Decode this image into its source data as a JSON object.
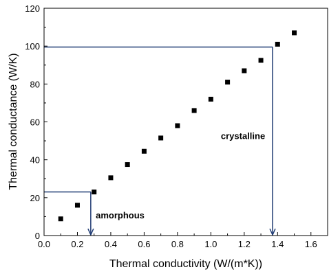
{
  "chart_data": {
    "type": "scatter",
    "title": "",
    "xlabel": "Thermal conductivity (W/(m*K))",
    "ylabel": "Thermal conductance (W/K)",
    "xlim": [
      0.0,
      1.7
    ],
    "ylim": [
      0,
      120
    ],
    "x_ticks": [
      0.0,
      0.2,
      0.4,
      0.6,
      0.8,
      1.0,
      1.2,
      1.4,
      1.6
    ],
    "x_tick_labels": [
      "0.0",
      "0.2",
      "0.4",
      "0.6",
      "0.8",
      "1.0",
      "1.2",
      "1.4",
      "1.6"
    ],
    "y_ticks": [
      0,
      20,
      40,
      60,
      80,
      100,
      120
    ],
    "y_tick_labels": [
      "0",
      "20",
      "40",
      "60",
      "80",
      "100",
      "120"
    ],
    "grid": false,
    "legend": "none",
    "marker": "square",
    "marker_color": "#000000",
    "series": [
      {
        "x": [
          0.1,
          0.2,
          0.3,
          0.4,
          0.5,
          0.6,
          0.7,
          0.8,
          0.9,
          1.0,
          1.1,
          1.2,
          1.3,
          1.4,
          1.5
        ],
        "y": [
          8.8,
          16.0,
          23.0,
          30.5,
          37.5,
          44.5,
          51.5,
          58.0,
          66.0,
          72.0,
          81.0,
          87.0,
          92.5,
          101.0,
          107.0
        ]
      }
    ],
    "annotations": [
      {
        "label": "amorphous",
        "y_value": 23,
        "x_value": 0.28,
        "line_color": "#1f3b73",
        "label_anchor": [
          0.31,
          9
        ]
      },
      {
        "label": "crystalline",
        "y_value": 99.5,
        "x_value": 1.37,
        "line_color": "#1f3b73",
        "label_anchor": [
          1.06,
          51
        ]
      }
    ]
  }
}
